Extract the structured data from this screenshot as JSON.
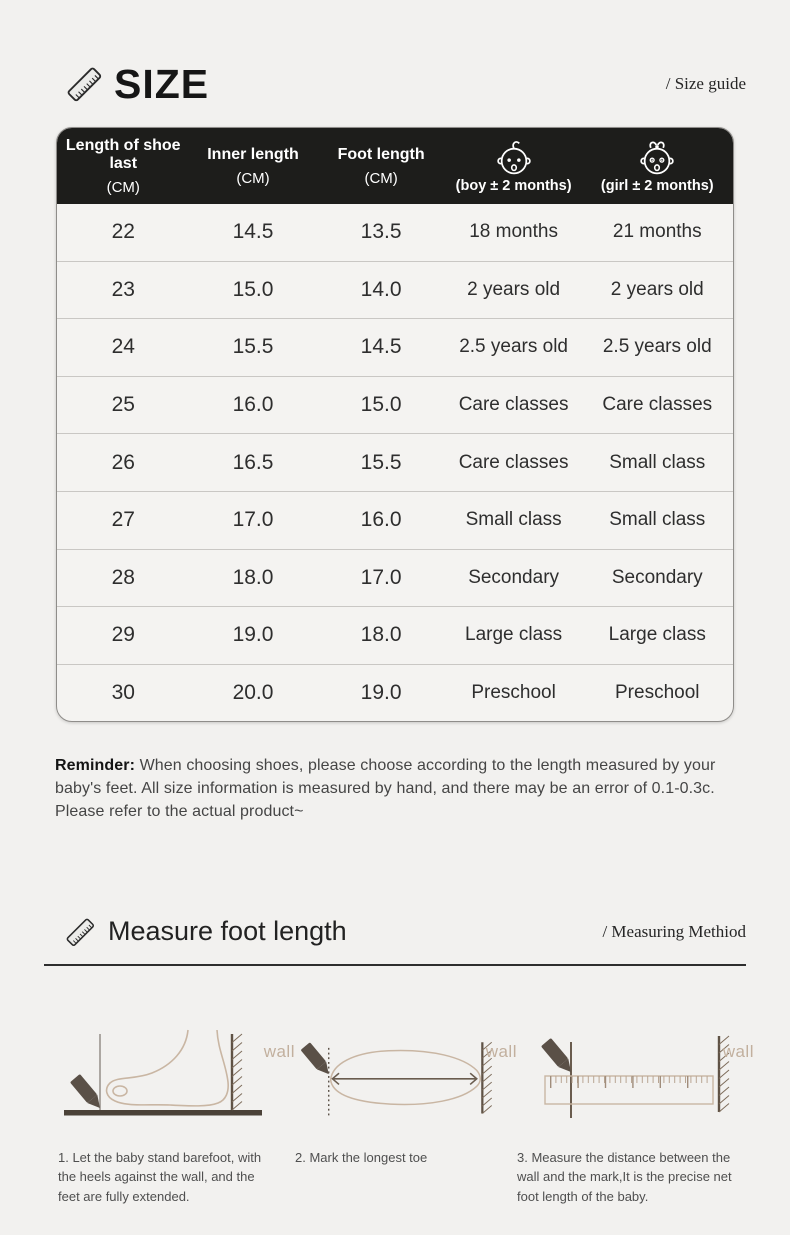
{
  "size_section": {
    "title": "SIZE",
    "guide_link": "/ Size guide"
  },
  "size_table": {
    "columns": [
      {
        "title": "Length of shoe last",
        "unit": "(CM)"
      },
      {
        "title": "Inner length",
        "unit": "(CM)"
      },
      {
        "title": "Foot length",
        "unit": "(CM)"
      },
      {
        "icon": "baby-boy-icon",
        "label": "(boy ± 2 months)"
      },
      {
        "icon": "baby-girl-icon",
        "label": "(girl ± 2 months)"
      }
    ],
    "rows": [
      [
        "22",
        "14.5",
        "13.5",
        "18 months",
        "21 months"
      ],
      [
        "23",
        "15.0",
        "14.0",
        "2 years old",
        "2 years old"
      ],
      [
        "24",
        "15.5",
        "14.5",
        "2.5 years old",
        "2.5 years old"
      ],
      [
        "25",
        "16.0",
        "15.0",
        "Care classes",
        "Care classes"
      ],
      [
        "26",
        "16.5",
        "15.5",
        "Care classes",
        "Small class"
      ],
      [
        "27",
        "17.0",
        "16.0",
        "Small class",
        "Small class"
      ],
      [
        "28",
        "18.0",
        "17.0",
        "Secondary",
        "Secondary"
      ],
      [
        "29",
        "19.0",
        "18.0",
        "Large class",
        "Large class"
      ],
      [
        "30",
        "20.0",
        "19.0",
        "Preschool",
        "Preschool"
      ]
    ]
  },
  "reminder": {
    "label": "Reminder:",
    "text": " When choosing shoes, please choose according to the length measured by your baby's feet. All size information is measured by hand, and there may be an error of 0.1-0.3c. Please refer to the actual product~"
  },
  "measure_section": {
    "title": "Measure foot length",
    "method_link": "/ Measuring Methiod",
    "steps": [
      {
        "wall_label": "wall",
        "caption": "1. Let the baby stand barefoot, with the heels against the wall, and the feet are fully extended."
      },
      {
        "wall_label": "wall",
        "caption": "2. Mark the longest toe"
      },
      {
        "wall_label": "wall",
        "caption": "3. Measure the distance between the wall and the mark,It is the precise net foot length of  the baby."
      }
    ]
  },
  "colors": {
    "page_background": "#f2f1ef",
    "table_header_background": "#1d1d1b",
    "table_header_text": "#ffffff",
    "outline_tan": "#c9b6a3",
    "wall_label_text": "#c2b09e",
    "pen_dark": "#5a5047",
    "ground_brown": "#4b4238"
  }
}
